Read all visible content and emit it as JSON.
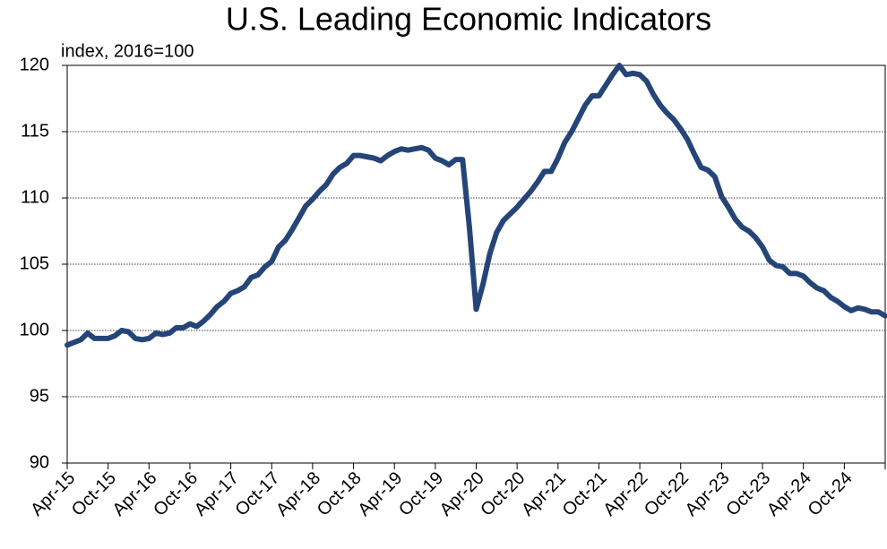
{
  "chart_data": {
    "type": "line",
    "title": "U.S. Leading Economic Indicators",
    "y_label": "index, 2016=100",
    "categories": [
      "Apr-15",
      null,
      null,
      null,
      null,
      null,
      "Oct-15",
      null,
      null,
      null,
      null,
      null,
      "Apr-16",
      null,
      null,
      null,
      null,
      null,
      "Oct-16",
      null,
      null,
      null,
      null,
      null,
      "Apr-17",
      null,
      null,
      null,
      null,
      null,
      "Oct-17",
      null,
      null,
      null,
      null,
      null,
      "Apr-18",
      null,
      null,
      null,
      null,
      null,
      "Oct-18",
      null,
      null,
      null,
      null,
      null,
      "Apr-19",
      null,
      null,
      null,
      null,
      null,
      "Oct-19",
      null,
      null,
      null,
      null,
      null,
      "Apr-20",
      null,
      null,
      null,
      null,
      null,
      "Oct-20",
      null,
      null,
      null,
      null,
      null,
      "Apr-21",
      null,
      null,
      null,
      null,
      null,
      "Oct-21",
      null,
      null,
      null,
      null,
      null,
      "Apr-22",
      null,
      null,
      null,
      null,
      null,
      "Oct-22",
      null,
      null,
      null,
      null,
      null,
      "Apr-23",
      null,
      null,
      null,
      null,
      null,
      "Oct-23",
      null,
      null,
      null,
      null,
      null,
      "Apr-24",
      null,
      null,
      null,
      null,
      null,
      "Oct-24",
      null,
      null,
      null,
      null,
      null,
      null
    ],
    "values": [
      98.9,
      99.1,
      99.3,
      99.8,
      99.4,
      99.4,
      99.4,
      99.6,
      100.0,
      99.9,
      99.4,
      99.3,
      99.4,
      99.8,
      99.7,
      99.8,
      100.2,
      100.2,
      100.5,
      100.3,
      100.7,
      101.2,
      101.8,
      102.2,
      102.8,
      103.0,
      103.3,
      104.0,
      104.2,
      104.8,
      105.2,
      106.3,
      106.8,
      107.6,
      108.5,
      109.4,
      109.9,
      110.5,
      111.0,
      111.8,
      112.3,
      112.6,
      113.2,
      113.2,
      113.1,
      113.0,
      112.8,
      113.2,
      113.5,
      113.7,
      113.6,
      113.7,
      113.8,
      113.6,
      113.0,
      112.8,
      112.5,
      112.9,
      112.9,
      107.8,
      101.6,
      103.5,
      105.8,
      107.4,
      108.3,
      108.8,
      109.3,
      109.9,
      110.5,
      111.2,
      112.0,
      112.0,
      113.0,
      114.2,
      115.0,
      116.0,
      117.0,
      117.7,
      117.7,
      118.5,
      119.3,
      120.0,
      119.3,
      119.4,
      119.3,
      118.8,
      117.8,
      117.0,
      116.4,
      115.9,
      115.2,
      114.4,
      113.3,
      112.3,
      112.1,
      111.6,
      110.1,
      109.3,
      108.4,
      107.8,
      107.5,
      107.0,
      106.3,
      105.3,
      104.9,
      104.8,
      104.3,
      104.3,
      104.1,
      103.6,
      103.2,
      103.0,
      102.5,
      102.2,
      101.8,
      101.5,
      101.7,
      101.6,
      101.4,
      101.4,
      101.1
    ],
    "color": "#254579",
    "ylim": [
      90,
      120
    ],
    "yticks": [
      90,
      95,
      100,
      105,
      110,
      115,
      120
    ],
    "grid": true
  }
}
